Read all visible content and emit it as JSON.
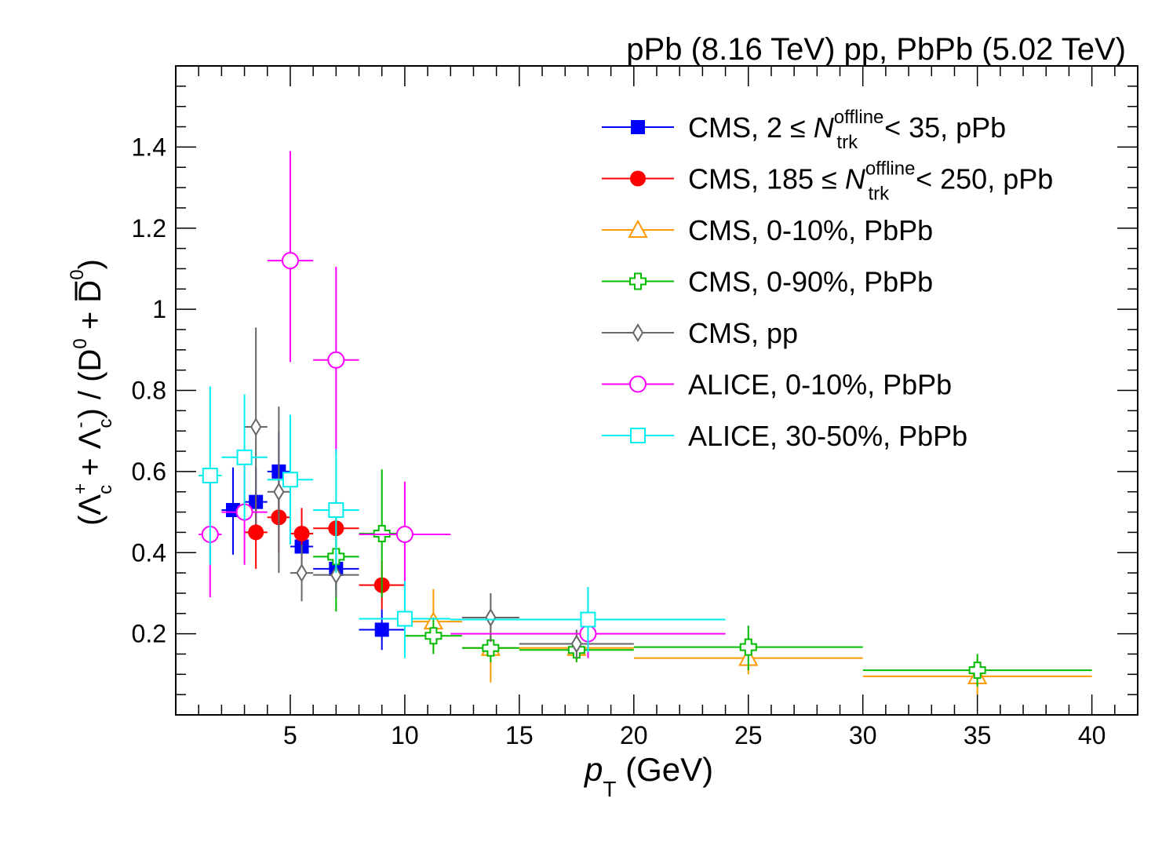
{
  "chart_data": {
    "type": "scatter",
    "title": "pPb (8.16 TeV) pp, PbPb (5.02 TeV)",
    "xlabel": {
      "main": "p",
      "sub": "T",
      "unit": " (GeV)"
    },
    "ylabel": {
      "open": "(Λ",
      "sup1": "+",
      "sub1": "c",
      "plus": " + Λ",
      "sup2": "-",
      "sub2": "c",
      "mid": ") / (D",
      "sup3": "0",
      "plus2": " + D",
      "sup4": "0",
      "close": ")"
    },
    "xlim": [
      0,
      42
    ],
    "ylim": [
      0,
      1.6
    ],
    "xticks": [
      5,
      10,
      15,
      20,
      25,
      30,
      35,
      40
    ],
    "xtick_labels": [
      "5",
      "10",
      "15",
      "20",
      "25",
      "30",
      "35",
      "40"
    ],
    "yticks": [
      0.2,
      0.4,
      0.6,
      0.8,
      1.0,
      1.2,
      1.4
    ],
    "ytick_labels": [
      "0.2",
      "0.4",
      "0.6",
      "0.8",
      "1",
      "1.2",
      "1.4"
    ],
    "grid": false,
    "legend_position": "top-right",
    "series": [
      {
        "name": {
          "pre": "CMS, 2 ≤ ",
          "var": "N",
          "sup": "offline",
          "sub": "trk",
          "post": " < 35, pPb"
        },
        "color": "#0000ff",
        "marker": "square-filled",
        "points": [
          {
            "x": 2.5,
            "y": 0.505,
            "xlo": 2.0,
            "xhi": 3.0,
            "ylo": 0.395,
            "yhi": 0.61
          },
          {
            "x": 3.5,
            "y": 0.525,
            "xlo": 3.0,
            "xhi": 4.0,
            "ylo": 0.44,
            "yhi": 0.61
          },
          {
            "x": 4.5,
            "y": 0.6,
            "xlo": 4.0,
            "xhi": 5.0,
            "ylo": 0.48,
            "yhi": 0.7
          },
          {
            "x": 5.5,
            "y": 0.415,
            "xlo": 5.0,
            "xhi": 6.0,
            "ylo": 0.36,
            "yhi": 0.47
          },
          {
            "x": 7.0,
            "y": 0.36,
            "xlo": 6.0,
            "xhi": 8.0,
            "ylo": 0.31,
            "yhi": 0.41
          },
          {
            "x": 9.0,
            "y": 0.21,
            "xlo": 8.0,
            "xhi": 10.0,
            "ylo": 0.16,
            "yhi": 0.26
          }
        ]
      },
      {
        "name": {
          "pre": "CMS, 185 ≤ ",
          "var": "N",
          "sup": "offline",
          "sub": "trk",
          "post": " < 250, pPb"
        },
        "color": "#ff0000",
        "marker": "circle-filled",
        "points": [
          {
            "x": 3.5,
            "y": 0.45,
            "xlo": 3.0,
            "xhi": 4.0,
            "ylo": 0.36,
            "yhi": 0.54
          },
          {
            "x": 4.5,
            "y": 0.487,
            "xlo": 4.0,
            "xhi": 5.0,
            "ylo": 0.4,
            "yhi": 0.57
          },
          {
            "x": 5.5,
            "y": 0.447,
            "xlo": 5.0,
            "xhi": 6.0,
            "ylo": 0.38,
            "yhi": 0.51
          },
          {
            "x": 7.0,
            "y": 0.46,
            "xlo": 6.0,
            "xhi": 8.0,
            "ylo": 0.39,
            "yhi": 0.53
          },
          {
            "x": 9.0,
            "y": 0.32,
            "xlo": 8.0,
            "xhi": 10.0,
            "ylo": 0.26,
            "yhi": 0.38
          }
        ]
      },
      {
        "name": {
          "pre": "CMS, 0-10%, PbPb"
        },
        "color": "#ff9900",
        "marker": "triangle-open",
        "points": [
          {
            "x": 11.25,
            "y": 0.23,
            "xlo": 10.0,
            "xhi": 12.5,
            "ylo": 0.16,
            "yhi": 0.31
          },
          {
            "x": 13.75,
            "y": 0.165,
            "xlo": 12.5,
            "xhi": 15.0,
            "ylo": 0.08,
            "yhi": 0.24
          },
          {
            "x": 17.5,
            "y": 0.165,
            "xlo": 15.0,
            "xhi": 20.0,
            "ylo": 0.13,
            "yhi": 0.2
          },
          {
            "x": 25.0,
            "y": 0.14,
            "xlo": 20.0,
            "xhi": 30.0,
            "ylo": 0.1,
            "yhi": 0.18
          },
          {
            "x": 35.0,
            "y": 0.095,
            "xlo": 30.0,
            "xhi": 40.0,
            "ylo": 0.05,
            "yhi": 0.14
          }
        ]
      },
      {
        "name": {
          "pre": "CMS, 0-90%, PbPb"
        },
        "color": "#00bb00",
        "marker": "cross-open",
        "points": [
          {
            "x": 7.0,
            "y": 0.39,
            "xlo": 6.0,
            "xhi": 8.0,
            "ylo": 0.255,
            "yhi": 0.52
          },
          {
            "x": 9.0,
            "y": 0.447,
            "xlo": 8.0,
            "xhi": 10.0,
            "ylo": 0.29,
            "yhi": 0.605
          },
          {
            "x": 11.25,
            "y": 0.195,
            "xlo": 10.0,
            "xhi": 12.5,
            "ylo": 0.15,
            "yhi": 0.24
          },
          {
            "x": 13.75,
            "y": 0.165,
            "xlo": 12.5,
            "xhi": 15.0,
            "ylo": 0.13,
            "yhi": 0.2
          },
          {
            "x": 17.5,
            "y": 0.16,
            "xlo": 15.0,
            "xhi": 20.0,
            "ylo": 0.13,
            "yhi": 0.19
          },
          {
            "x": 25.0,
            "y": 0.167,
            "xlo": 20.0,
            "xhi": 30.0,
            "ylo": 0.11,
            "yhi": 0.22
          },
          {
            "x": 35.0,
            "y": 0.11,
            "xlo": 30.0,
            "xhi": 40.0,
            "ylo": 0.07,
            "yhi": 0.15
          }
        ]
      },
      {
        "name": {
          "pre": "CMS, pp"
        },
        "color": "#666666",
        "marker": "diamond-open",
        "points": [
          {
            "x": 3.5,
            "y": 0.71,
            "xlo": 3.0,
            "xhi": 4.0,
            "ylo": 0.47,
            "yhi": 0.955
          },
          {
            "x": 4.5,
            "y": 0.55,
            "xlo": 4.0,
            "xhi": 5.0,
            "ylo": 0.35,
            "yhi": 0.76
          },
          {
            "x": 5.5,
            "y": 0.35,
            "xlo": 5.0,
            "xhi": 6.0,
            "ylo": 0.28,
            "yhi": 0.42
          },
          {
            "x": 7.0,
            "y": 0.345,
            "xlo": 6.0,
            "xhi": 8.0,
            "ylo": 0.29,
            "yhi": 0.4
          },
          {
            "x": 13.75,
            "y": 0.24,
            "xlo": 12.5,
            "xhi": 15.0,
            "ylo": 0.18,
            "yhi": 0.3
          },
          {
            "x": 17.5,
            "y": 0.175,
            "xlo": 15.0,
            "xhi": 20.0,
            "ylo": 0.14,
            "yhi": 0.21
          }
        ]
      },
      {
        "name": {
          "pre": "ALICE, 0-10%, PbPb"
        },
        "color": "#ff00ff",
        "marker": "circle-open",
        "points": [
          {
            "x": 1.5,
            "y": 0.445,
            "xlo": 1.0,
            "xhi": 2.0,
            "ylo": 0.29,
            "yhi": 0.6
          },
          {
            "x": 3.0,
            "y": 0.5,
            "xlo": 2.0,
            "xhi": 4.0,
            "ylo": 0.37,
            "yhi": 0.63
          },
          {
            "x": 5.0,
            "y": 1.12,
            "xlo": 4.0,
            "xhi": 6.0,
            "ylo": 0.87,
            "yhi": 1.39
          },
          {
            "x": 7.0,
            "y": 0.875,
            "xlo": 6.0,
            "xhi": 8.0,
            "ylo": 0.645,
            "yhi": 1.105
          },
          {
            "x": 10.0,
            "y": 0.445,
            "xlo": 8.0,
            "xhi": 12.0,
            "ylo": 0.31,
            "yhi": 0.575
          },
          {
            "x": 18.0,
            "y": 0.2,
            "xlo": 12.0,
            "xhi": 24.0,
            "ylo": 0.14,
            "yhi": 0.26
          }
        ]
      },
      {
        "name": {
          "pre": "ALICE, 30-50%, PbPb"
        },
        "color": "#00eeee",
        "marker": "square-open",
        "points": [
          {
            "x": 1.5,
            "y": 0.59,
            "xlo": 1.0,
            "xhi": 2.0,
            "ylo": 0.37,
            "yhi": 0.81
          },
          {
            "x": 3.0,
            "y": 0.635,
            "xlo": 2.0,
            "xhi": 4.0,
            "ylo": 0.48,
            "yhi": 0.79
          },
          {
            "x": 5.0,
            "y": 0.58,
            "xlo": 4.0,
            "xhi": 6.0,
            "ylo": 0.42,
            "yhi": 0.74
          },
          {
            "x": 7.0,
            "y": 0.505,
            "xlo": 6.0,
            "xhi": 8.0,
            "ylo": 0.35,
            "yhi": 0.655
          },
          {
            "x": 10.0,
            "y": 0.237,
            "xlo": 8.0,
            "xhi": 12.0,
            "ylo": 0.14,
            "yhi": 0.33
          },
          {
            "x": 18.0,
            "y": 0.235,
            "xlo": 12.0,
            "xhi": 24.0,
            "ylo": 0.155,
            "yhi": 0.315
          }
        ]
      }
    ]
  }
}
